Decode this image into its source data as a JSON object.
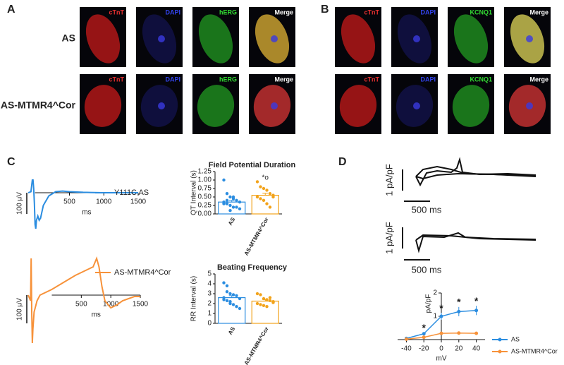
{
  "panels": [
    "A",
    "B",
    "C",
    "D"
  ],
  "images": {
    "A": {
      "rows": [
        "AS",
        "AS-MTMR4^Cor"
      ],
      "channels": [
        "cTnT",
        "DAPI",
        "hERG",
        "Merge"
      ]
    },
    "B": {
      "channels": [
        "cTnT",
        "DAPI",
        "KCNQ1",
        "Merge"
      ]
    }
  },
  "current_traces": {
    "scale_y": "1 pA/pF",
    "scale_x": "500 ms"
  },
  "chart_data": [
    {
      "type": "line",
      "x": [
        -100,
        -60,
        -40,
        -30,
        -20,
        -10,
        0,
        10,
        20,
        40,
        60,
        80,
        120,
        200,
        300,
        400,
        500,
        700,
        1000,
        1500
      ],
      "series": [
        {
          "name": "Y111C AS",
          "color": "#2b8de0",
          "values": [
            0,
            5,
            60,
            60,
            20,
            -50,
            -150,
            -170,
            -130,
            -110,
            -130,
            -120,
            -60,
            -15,
            5,
            8,
            5,
            2,
            0,
            0
          ]
        }
      ],
      "xlim": [
        -100,
        1500
      ],
      "ylim": [
        -250,
        150
      ],
      "xticks": [
        500,
        1000,
        1500
      ],
      "xlabel": "ms",
      "scale_bar": {
        "value": 100,
        "label": "100 μV"
      }
    },
    {
      "type": "line",
      "x": [
        -400,
        -360,
        -350,
        -340,
        -330,
        -320,
        -300,
        -250,
        -200,
        0,
        200,
        400,
        600,
        700,
        760,
        800,
        850,
        900,
        1000,
        1100,
        1200,
        1400,
        1500
      ],
      "series": [
        {
          "name": "AS-MTMR4^Cor",
          "color": "#f7923a",
          "values": [
            0,
            -20,
            130,
            -60,
            -170,
            -120,
            -60,
            -20,
            0,
            20,
            45,
            70,
            90,
            100,
            130,
            100,
            30,
            -20,
            -45,
            -35,
            -20,
            -5,
            -5
          ]
        }
      ],
      "xlim": [
        -400,
        1500
      ],
      "ylim": [
        -180,
        145
      ],
      "xticks": [
        500,
        1000,
        1500
      ],
      "xlabel": "ms",
      "scale_bar": {
        "value": 100,
        "label": "100 μV"
      }
    },
    {
      "type": "bar",
      "title": "Field Potential Duration",
      "ylabel": "QT Interval (s)",
      "categories": [
        "AS",
        "AS-MTMR4^Cor"
      ],
      "values": [
        0.35,
        0.55
      ],
      "errors": [
        0.05,
        0.06
      ],
      "colors": [
        "#2b8de0",
        "#f2a31b"
      ],
      "points": [
        [
          1.0,
          0.6,
          0.5,
          0.45,
          0.4,
          0.35,
          0.3,
          0.3,
          0.25,
          0.2,
          0.2,
          0.15,
          0.35,
          0.4,
          0.1,
          0.5
        ],
        [
          0.95,
          0.8,
          0.75,
          0.7,
          0.6,
          0.55,
          0.5,
          0.45,
          0.4,
          0.3,
          0.2,
          0.5
        ]
      ],
      "value_annotations": [
        null,
        "*o"
      ],
      "ylim": [
        0,
        1.25
      ],
      "yticks": [
        {
          "value": 0,
          "label": "0.00"
        },
        {
          "value": 0.25,
          "label": "0.25"
        },
        {
          "value": 0.5,
          "label": "0.50"
        },
        {
          "value": 0.75,
          "label": "0.75"
        },
        {
          "value": 1,
          "label": "1.00"
        },
        {
          "value": 1.25,
          "label": "1.25"
        }
      ]
    },
    {
      "type": "bar",
      "title": "Beating Frequency",
      "ylabel": "RR Interval (s)",
      "categories": [
        "AS",
        "AS-MTMR4^Cor"
      ],
      "values": [
        2.6,
        2.25
      ],
      "errors": [
        0.2,
        0.15
      ],
      "colors": [
        "#2b8de0",
        "#f2a31b"
      ],
      "points": [
        [
          4.1,
          3.8,
          3.0,
          2.9,
          2.8,
          2.5,
          2.4,
          2.3,
          2.0,
          1.9,
          1.7,
          1.5,
          2.6,
          3.2,
          2.2
        ],
        [
          3.0,
          2.9,
          2.5,
          2.4,
          2.3,
          2.2,
          2.0,
          1.9,
          1.8,
          1.7,
          2.6,
          2.1
        ]
      ],
      "ylim": [
        0,
        5
      ],
      "yticks": [
        0,
        1,
        2,
        3,
        4,
        5
      ]
    },
    {
      "type": "line",
      "x": [
        -40,
        -20,
        0,
        20,
        40
      ],
      "series": [
        {
          "name": "AS",
          "color": "#2b8de0",
          "values": [
            0.05,
            0.25,
            1.0,
            1.2,
            1.25
          ],
          "errors": [
            0.05,
            0.05,
            0.15,
            0.2,
            0.2
          ],
          "sig_labels": [
            null,
            "*",
            "*",
            "*",
            "*"
          ]
        },
        {
          "name": "AS-MTMR4^Cor",
          "color": "#f7923a",
          "values": [
            0.02,
            0.1,
            0.27,
            0.28,
            0.27
          ]
        }
      ],
      "xlim": [
        -50,
        50
      ],
      "ylim": [
        0,
        2
      ],
      "xticks": [
        -40,
        -20,
        0,
        20,
        40
      ],
      "yticks": [
        1,
        2
      ],
      "xlabel": "mV",
      "ylabel": "pA/pF",
      "legend": "right"
    }
  ]
}
